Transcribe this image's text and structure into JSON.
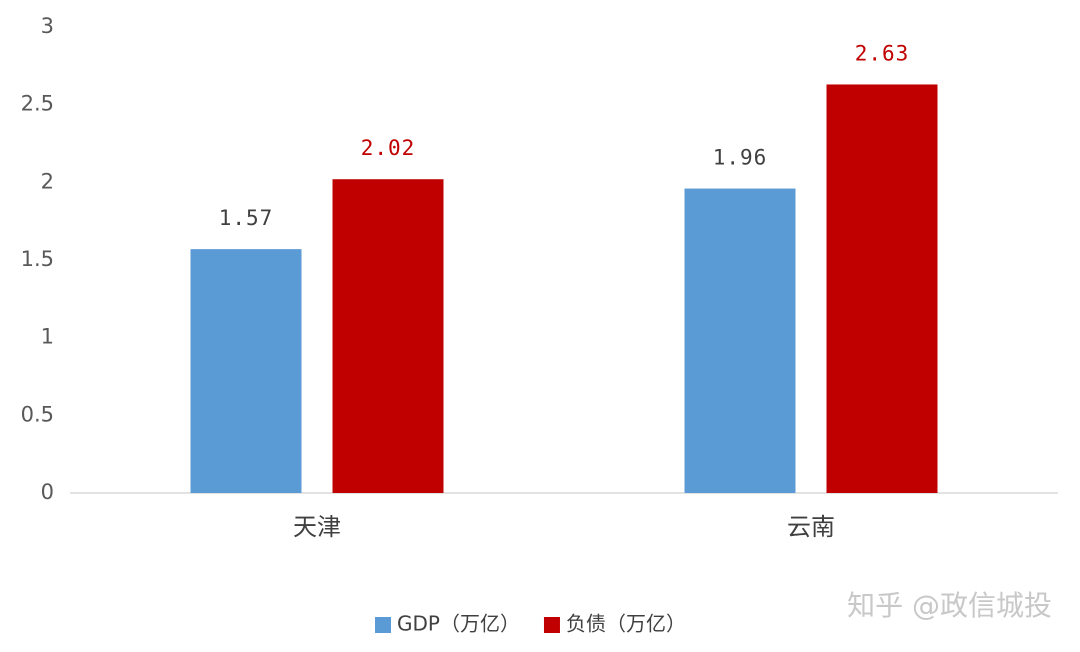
{
  "chart_data": {
    "type": "bar",
    "categories": [
      "天津",
      "云南"
    ],
    "series": [
      {
        "name": "GDP（万亿）",
        "color": "#5b9bd5",
        "label_color": "#404040",
        "values": [
          1.57,
          1.96
        ]
      },
      {
        "name": "负债（万亿）",
        "color": "#c00000",
        "label_color": "#c00000",
        "values": [
          2.02,
          2.63
        ]
      }
    ],
    "ylim": [
      0,
      3
    ],
    "yticks": [
      0,
      0.5,
      1,
      1.5,
      2,
      2.5,
      3
    ],
    "grid": false,
    "legend": "bottom",
    "annotation": "知乎 @政信城投"
  }
}
